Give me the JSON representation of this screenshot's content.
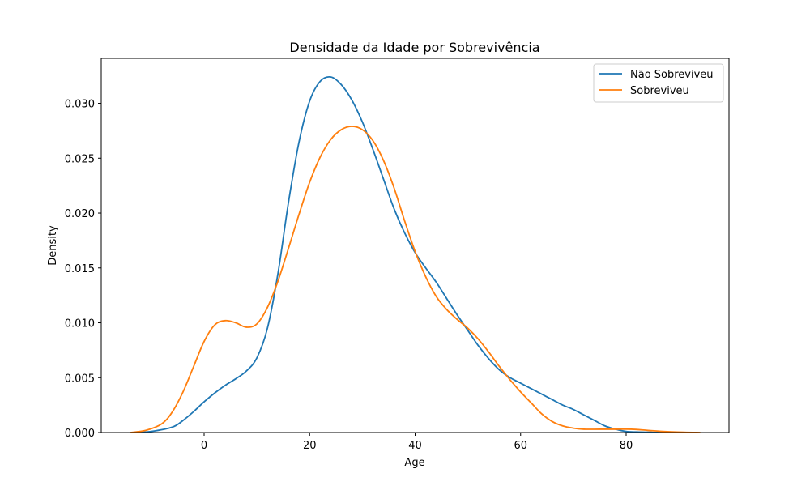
{
  "chart_data": {
    "type": "line",
    "title": "Densidade da Idade por Sobrevivência",
    "xlabel": "Age",
    "ylabel": "Density",
    "xlim": [
      -19.5,
      99.5
    ],
    "ylim": [
      0,
      0.0341
    ],
    "xticks": [
      0,
      20,
      40,
      60,
      80
    ],
    "xtick_labels": [
      "0",
      "20",
      "40",
      "60",
      "80"
    ],
    "yticks": [
      0,
      0.005,
      0.01,
      0.015,
      0.02,
      0.025,
      0.03
    ],
    "ytick_labels": [
      "0.000",
      "0.005",
      "0.010",
      "0.015",
      "0.020",
      "0.025",
      "0.030"
    ],
    "grid": false,
    "legend_position": "upper right",
    "series": [
      {
        "name": "Não Sobreviveu",
        "color": "#1f77b4",
        "points": [
          [
            -13,
            0
          ],
          [
            -10,
            0.0001
          ],
          [
            -6,
            0.0005
          ],
          [
            -4,
            0.0011
          ],
          [
            -2,
            0.0019
          ],
          [
            0,
            0.0028
          ],
          [
            2,
            0.0036
          ],
          [
            4,
            0.0043
          ],
          [
            6,
            0.0049
          ],
          [
            8,
            0.0056
          ],
          [
            10,
            0.0068
          ],
          [
            12,
            0.0095
          ],
          [
            14,
            0.0145
          ],
          [
            16,
            0.021
          ],
          [
            18,
            0.0265
          ],
          [
            20,
            0.0302
          ],
          [
            22,
            0.032
          ],
          [
            24,
            0.0324
          ],
          [
            26,
            0.0317
          ],
          [
            28,
            0.0303
          ],
          [
            30,
            0.0283
          ],
          [
            32,
            0.0258
          ],
          [
            34,
            0.0231
          ],
          [
            36,
            0.0204
          ],
          [
            38,
            0.0182
          ],
          [
            40,
            0.0164
          ],
          [
            42,
            0.015
          ],
          [
            44,
            0.0137
          ],
          [
            46,
            0.0122
          ],
          [
            48,
            0.0107
          ],
          [
            50,
            0.0093
          ],
          [
            52,
            0.0079
          ],
          [
            54,
            0.0067
          ],
          [
            56,
            0.0057
          ],
          [
            58,
            0.005
          ],
          [
            60,
            0.0045
          ],
          [
            62,
            0.004
          ],
          [
            64,
            0.0035
          ],
          [
            66,
            0.003
          ],
          [
            68,
            0.0025
          ],
          [
            70,
            0.0021
          ],
          [
            72,
            0.0016
          ],
          [
            74,
            0.0011
          ],
          [
            76,
            0.0006
          ],
          [
            78,
            0.0003
          ],
          [
            80,
            0.0001
          ],
          [
            82,
            5e-05
          ],
          [
            85,
            2e-05
          ],
          [
            88,
            0
          ]
        ]
      },
      {
        "name": "Sobreviveu",
        "color": "#ff7f0e",
        "points": [
          [
            -14,
            0
          ],
          [
            -11,
            0.0002
          ],
          [
            -8,
            0.0008
          ],
          [
            -6,
            0.0019
          ],
          [
            -4,
            0.0037
          ],
          [
            -2,
            0.006
          ],
          [
            0,
            0.0083
          ],
          [
            2,
            0.0098
          ],
          [
            4,
            0.0102
          ],
          [
            6,
            0.01
          ],
          [
            8,
            0.0096
          ],
          [
            10,
            0.0099
          ],
          [
            12,
            0.0114
          ],
          [
            14,
            0.0138
          ],
          [
            16,
            0.0168
          ],
          [
            18,
            0.0199
          ],
          [
            20,
            0.0228
          ],
          [
            22,
            0.0251
          ],
          [
            24,
            0.0267
          ],
          [
            26,
            0.0276
          ],
          [
            28,
            0.0279
          ],
          [
            30,
            0.0276
          ],
          [
            32,
            0.0266
          ],
          [
            34,
            0.0248
          ],
          [
            36,
            0.0223
          ],
          [
            38,
            0.0193
          ],
          [
            40,
            0.0165
          ],
          [
            42,
            0.0142
          ],
          [
            44,
            0.0124
          ],
          [
            46,
            0.0112
          ],
          [
            48,
            0.0103
          ],
          [
            50,
            0.0095
          ],
          [
            52,
            0.0085
          ],
          [
            54,
            0.0073
          ],
          [
            56,
            0.006
          ],
          [
            58,
            0.0048
          ],
          [
            60,
            0.0037
          ],
          [
            62,
            0.0027
          ],
          [
            64,
            0.0017
          ],
          [
            66,
            0.001
          ],
          [
            68,
            0.0006
          ],
          [
            70,
            0.0004
          ],
          [
            72,
            0.0003
          ],
          [
            75,
            0.0003
          ],
          [
            78,
            0.0003
          ],
          [
            81,
            0.0003
          ],
          [
            84,
            0.0002
          ],
          [
            87,
            0.0001
          ],
          [
            91,
            3e-05
          ],
          [
            94,
            0
          ]
        ]
      }
    ]
  }
}
